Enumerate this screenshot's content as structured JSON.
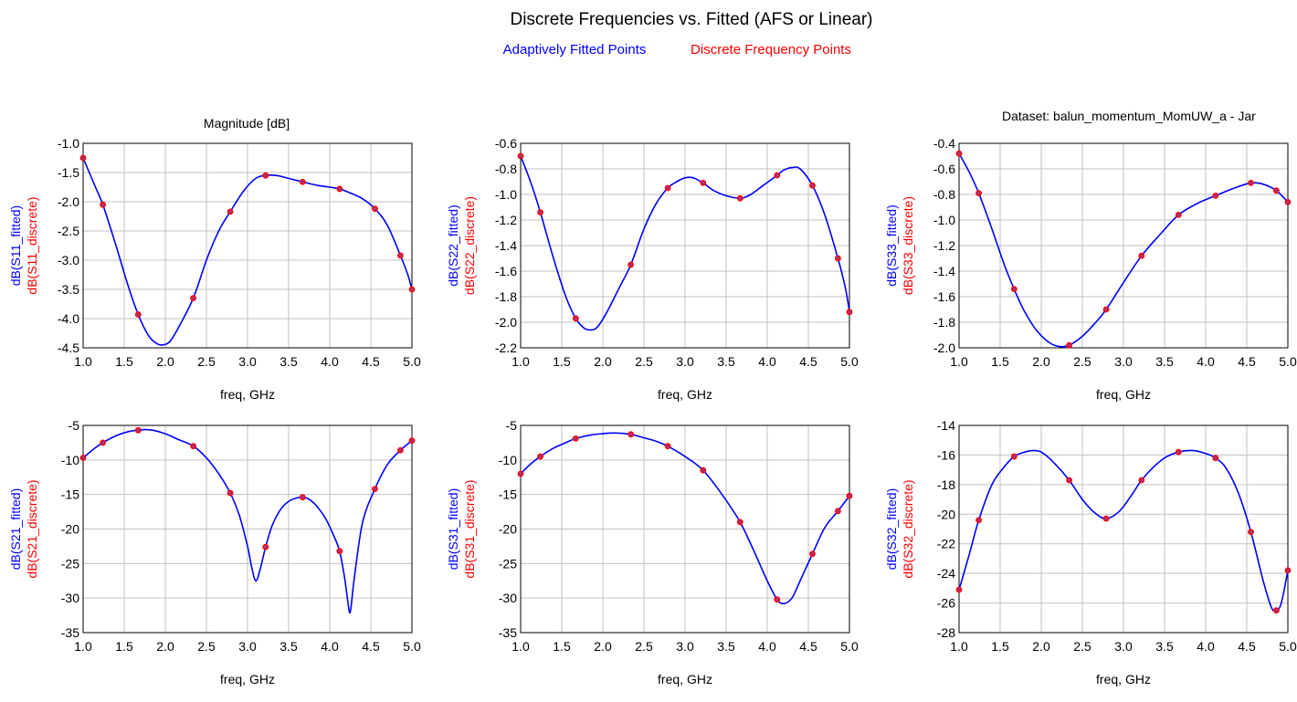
{
  "header": {
    "title": "Discrete Frequencies vs. Fitted (AFS or Linear)",
    "legend_fitted": "Adaptively Fitted Points",
    "legend_discrete": "Discrete Frequency Points",
    "magnitude_note": "Magnitude [dB]",
    "dataset_note": "Dataset: balun_momentum_MomUW_a - Jar"
  },
  "colors": {
    "fitted": "#0000ff",
    "discrete": "#ff0000",
    "marker_fill": "#b0306a",
    "grid": "#c0c0c0",
    "frame": "#000000"
  },
  "chart_data": [
    {
      "type": "line",
      "xlabel": "freq, GHz",
      "ylabels": [
        "dB(S11_fitted)",
        "dB(S11_discrete)"
      ],
      "xlim": [
        1.0,
        5.0
      ],
      "ylim": [
        -4.5,
        -1.0
      ],
      "xticks": [
        "1.0",
        "1.5",
        "2.0",
        "2.5",
        "3.0",
        "3.5",
        "4.0",
        "4.5",
        "5.0"
      ],
      "yticks": [
        "-1.0",
        "-1.5",
        "-2.0",
        "-2.5",
        "-3.0",
        "-3.5",
        "-4.0",
        "-4.5"
      ],
      "series": [
        {
          "name": "dB(S11_fitted)",
          "x": [
            1.0,
            1.15,
            1.24,
            1.4,
            1.55,
            1.67,
            1.8,
            1.9,
            1.97,
            2.05,
            2.15,
            2.34,
            2.5,
            2.65,
            2.79,
            2.95,
            3.1,
            3.22,
            3.35,
            3.5,
            3.67,
            3.85,
            4.0,
            4.12,
            4.25,
            4.4,
            4.55,
            4.7,
            4.86,
            4.95,
            5.0
          ],
          "y": [
            -1.25,
            -1.75,
            -2.05,
            -2.75,
            -3.45,
            -3.93,
            -4.3,
            -4.43,
            -4.45,
            -4.4,
            -4.18,
            -3.65,
            -3.0,
            -2.5,
            -2.17,
            -1.82,
            -1.6,
            -1.55,
            -1.55,
            -1.6,
            -1.66,
            -1.72,
            -1.75,
            -1.78,
            -1.85,
            -1.95,
            -2.12,
            -2.4,
            -2.92,
            -3.25,
            -3.5
          ]
        },
        {
          "name": "dB(S11_discrete)",
          "x": [
            1.0,
            1.24,
            1.67,
            2.34,
            2.79,
            3.22,
            3.67,
            4.12,
            4.55,
            4.86,
            5.0
          ],
          "y": [
            -1.25,
            -2.05,
            -3.93,
            -3.65,
            -2.17,
            -1.55,
            -1.66,
            -1.78,
            -2.12,
            -2.92,
            -3.5
          ]
        }
      ]
    },
    {
      "type": "line",
      "xlabel": "freq, GHz",
      "ylabels": [
        "dB(S22_fitted)",
        "dB(S22_discrete)"
      ],
      "xlim": [
        1.0,
        5.0
      ],
      "ylim": [
        -2.2,
        -0.6
      ],
      "xticks": [
        "1.0",
        "1.5",
        "2.0",
        "2.5",
        "3.0",
        "3.5",
        "4.0",
        "4.5",
        "5.0"
      ],
      "yticks": [
        "-0.6",
        "-0.8",
        "-1.0",
        "-1.2",
        "-1.4",
        "-1.6",
        "-1.8",
        "-2.0",
        "-2.2"
      ],
      "series": [
        {
          "name": "dB(S22_fitted)",
          "x": [
            1.0,
            1.12,
            1.24,
            1.4,
            1.55,
            1.67,
            1.76,
            1.84,
            1.93,
            2.05,
            2.2,
            2.34,
            2.5,
            2.65,
            2.79,
            2.9,
            3.0,
            3.1,
            3.22,
            3.35,
            3.5,
            3.67,
            3.8,
            3.95,
            4.12,
            4.2,
            4.3,
            4.4,
            4.55,
            4.7,
            4.86,
            4.95,
            5.0
          ],
          "y": [
            -0.7,
            -0.9,
            -1.14,
            -1.5,
            -1.8,
            -1.97,
            -2.04,
            -2.06,
            -2.04,
            -1.92,
            -1.73,
            -1.55,
            -1.27,
            -1.07,
            -0.95,
            -0.9,
            -0.87,
            -0.87,
            -0.91,
            -0.97,
            -1.01,
            -1.03,
            -1.0,
            -0.93,
            -0.85,
            -0.81,
            -0.79,
            -0.8,
            -0.93,
            -1.16,
            -1.5,
            -1.73,
            -1.92
          ]
        },
        {
          "name": "dB(S22_discrete)",
          "x": [
            1.0,
            1.24,
            1.67,
            2.34,
            2.79,
            3.22,
            3.67,
            4.12,
            4.55,
            4.86,
            5.0
          ],
          "y": [
            -0.7,
            -1.14,
            -1.97,
            -1.55,
            -0.95,
            -0.91,
            -1.03,
            -0.85,
            -0.93,
            -1.5,
            -1.92
          ]
        }
      ]
    },
    {
      "type": "line",
      "xlabel": "freq, GHz",
      "ylabels": [
        "dB(S33_fitted)",
        "dB(S33_discrete)"
      ],
      "xlim": [
        1.0,
        5.0
      ],
      "ylim": [
        -2.0,
        -0.4
      ],
      "xticks": [
        "1.0",
        "1.5",
        "2.0",
        "2.5",
        "3.0",
        "3.5",
        "4.0",
        "4.5",
        "5.0"
      ],
      "yticks": [
        "-0.4",
        "-0.6",
        "-0.8",
        "-1.0",
        "-1.2",
        "-1.4",
        "-1.6",
        "-1.8",
        "-2.0"
      ],
      "series": [
        {
          "name": "dB(S33_fitted)",
          "x": [
            1.0,
            1.12,
            1.24,
            1.4,
            1.55,
            1.67,
            1.8,
            1.95,
            2.1,
            2.22,
            2.34,
            2.5,
            2.65,
            2.79,
            3.0,
            3.22,
            3.45,
            3.67,
            3.9,
            4.12,
            4.35,
            4.55,
            4.7,
            4.86,
            5.0
          ],
          "y": [
            -0.48,
            -0.62,
            -0.79,
            -1.07,
            -1.35,
            -1.54,
            -1.72,
            -1.87,
            -1.96,
            -1.99,
            -1.98,
            -1.91,
            -1.81,
            -1.7,
            -1.49,
            -1.28,
            -1.11,
            -0.96,
            -0.87,
            -0.81,
            -0.75,
            -0.71,
            -0.72,
            -0.77,
            -0.86
          ]
        },
        {
          "name": "dB(S33_discrete)",
          "x": [
            1.0,
            1.24,
            1.67,
            2.34,
            2.79,
            3.22,
            3.67,
            4.12,
            4.55,
            4.86,
            5.0
          ],
          "y": [
            -0.48,
            -0.79,
            -1.54,
            -1.98,
            -1.7,
            -1.28,
            -0.96,
            -0.81,
            -0.71,
            -0.77,
            -0.86
          ]
        }
      ]
    },
    {
      "type": "line",
      "xlabel": "freq, GHz",
      "ylabels": [
        "dB(S21_fitted)",
        "dB(S21_discrete)"
      ],
      "xlim": [
        1.0,
        5.0
      ],
      "ylim": [
        -35,
        -5
      ],
      "xticks": [
        "1.0",
        "1.5",
        "2.0",
        "2.5",
        "3.0",
        "3.5",
        "4.0",
        "4.5",
        "5.0"
      ],
      "yticks": [
        "-5",
        "-10",
        "-15",
        "-20",
        "-25",
        "-30",
        "-35"
      ],
      "series": [
        {
          "name": "dB(S21_fitted)",
          "x": [
            1.0,
            1.12,
            1.24,
            1.4,
            1.55,
            1.67,
            1.75,
            1.85,
            2.0,
            2.15,
            2.34,
            2.5,
            2.65,
            2.79,
            2.9,
            3.0,
            3.05,
            3.1,
            3.15,
            3.22,
            3.3,
            3.4,
            3.5,
            3.6,
            3.67,
            3.75,
            3.85,
            3.95,
            4.05,
            4.12,
            4.18,
            4.22,
            4.25,
            4.3,
            4.4,
            4.55,
            4.7,
            4.86,
            5.0
          ],
          "y": [
            -9.7,
            -8.5,
            -7.5,
            -6.5,
            -5.9,
            -5.7,
            -5.6,
            -5.7,
            -6.2,
            -7.0,
            -8.0,
            -9.7,
            -12.0,
            -14.8,
            -18.0,
            -22.5,
            -25.5,
            -27.5,
            -26.0,
            -22.6,
            -19.5,
            -17.2,
            -16.0,
            -15.5,
            -15.4,
            -15.7,
            -16.8,
            -18.5,
            -21.0,
            -23.2,
            -27.0,
            -30.5,
            -32.0,
            -27.0,
            -19.0,
            -14.2,
            -10.7,
            -8.6,
            -7.2
          ]
        },
        {
          "name": "dB(S21_discrete)",
          "x": [
            1.0,
            1.24,
            1.67,
            2.34,
            2.79,
            3.22,
            3.67,
            4.12,
            4.55,
            4.86,
            5.0
          ],
          "y": [
            -9.7,
            -7.5,
            -5.7,
            -8.0,
            -14.8,
            -22.6,
            -15.4,
            -23.2,
            -14.2,
            -8.6,
            -7.2
          ]
        }
      ]
    },
    {
      "type": "line",
      "xlabel": "freq, GHz",
      "ylabels": [
        "dB(S31_fitted)",
        "dB(S31_discrete)"
      ],
      "xlim": [
        1.0,
        5.0
      ],
      "ylim": [
        -35,
        -5
      ],
      "xticks": [
        "1.0",
        "1.5",
        "2.0",
        "2.5",
        "3.0",
        "3.5",
        "4.0",
        "4.5",
        "5.0"
      ],
      "yticks": [
        "-5",
        "-10",
        "-15",
        "-20",
        "-25",
        "-30",
        "-35"
      ],
      "series": [
        {
          "name": "dB(S31_fitted)",
          "x": [
            1.0,
            1.12,
            1.24,
            1.4,
            1.55,
            1.67,
            1.85,
            2.0,
            2.15,
            2.34,
            2.5,
            2.65,
            2.79,
            3.0,
            3.22,
            3.45,
            3.67,
            3.85,
            4.0,
            4.12,
            4.2,
            4.3,
            4.4,
            4.55,
            4.7,
            4.86,
            5.0
          ],
          "y": [
            -12.0,
            -10.6,
            -9.5,
            -8.3,
            -7.5,
            -6.9,
            -6.4,
            -6.2,
            -6.1,
            -6.3,
            -6.8,
            -7.3,
            -8.0,
            -9.5,
            -11.5,
            -15.0,
            -19.0,
            -23.5,
            -27.5,
            -30.2,
            -30.8,
            -30.0,
            -27.5,
            -23.6,
            -19.8,
            -17.4,
            -15.2
          ]
        },
        {
          "name": "dB(S31_discrete)",
          "x": [
            1.0,
            1.24,
            1.67,
            2.34,
            2.79,
            3.22,
            3.67,
            4.12,
            4.55,
            4.86,
            5.0
          ],
          "y": [
            -12.0,
            -9.5,
            -6.9,
            -6.3,
            -8.0,
            -11.5,
            -19.0,
            -30.2,
            -23.6,
            -17.4,
            -15.2
          ]
        }
      ]
    },
    {
      "type": "line",
      "xlabel": "freq, GHz",
      "ylabels": [
        "dB(S32_fitted)",
        "dB(S32_discrete)"
      ],
      "xlim": [
        1.0,
        5.0
      ],
      "ylim": [
        -28,
        -14
      ],
      "xticks": [
        "1.0",
        "1.5",
        "2.0",
        "2.5",
        "3.0",
        "3.5",
        "4.0",
        "4.5",
        "5.0"
      ],
      "yticks": [
        "-14",
        "-16",
        "-18",
        "-20",
        "-22",
        "-24",
        "-26",
        "-28"
      ],
      "series": [
        {
          "name": "dB(S32_fitted)",
          "x": [
            1.0,
            1.12,
            1.24,
            1.4,
            1.55,
            1.67,
            1.8,
            1.9,
            2.0,
            2.15,
            2.34,
            2.5,
            2.65,
            2.79,
            2.95,
            3.1,
            3.22,
            3.35,
            3.5,
            3.67,
            3.85,
            4.0,
            4.12,
            4.25,
            4.4,
            4.55,
            4.7,
            4.8,
            4.86,
            4.92,
            5.0
          ],
          "y": [
            -25.1,
            -22.8,
            -20.4,
            -18.0,
            -16.8,
            -16.1,
            -15.8,
            -15.7,
            -15.8,
            -16.5,
            -17.7,
            -19.0,
            -19.9,
            -20.3,
            -19.8,
            -18.7,
            -17.7,
            -16.9,
            -16.2,
            -15.8,
            -15.7,
            -15.9,
            -16.2,
            -16.9,
            -18.6,
            -21.2,
            -24.5,
            -26.3,
            -26.5,
            -26.0,
            -23.8
          ]
        },
        {
          "name": "dB(S32_discrete)",
          "x": [
            1.0,
            1.24,
            1.67,
            2.34,
            2.79,
            3.22,
            3.67,
            4.12,
            4.55,
            4.86,
            5.0
          ],
          "y": [
            -25.1,
            -20.4,
            -16.1,
            -17.7,
            -20.3,
            -17.7,
            -15.8,
            -16.2,
            -21.2,
            -26.5,
            -23.8
          ]
        }
      ]
    }
  ]
}
